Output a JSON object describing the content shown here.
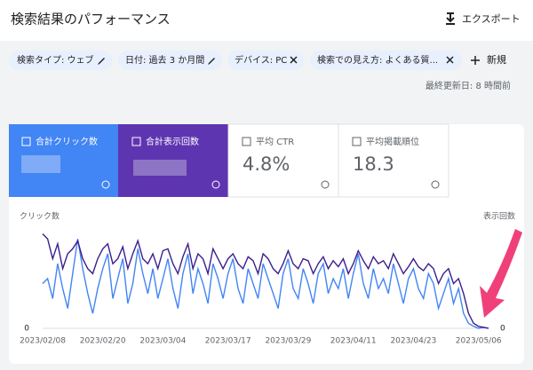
{
  "header": {
    "title": "検索結果のパフォーマンス",
    "export": "エクスポート"
  },
  "filters": {
    "chips": [
      "検索タイプ: ウェブ",
      "日付: 過去 3 か月間",
      "デバイス: PC",
      "検索での見え方: よくある質..."
    ],
    "new": "新規",
    "last_updated": "最終更新日: 8 時間前"
  },
  "cards": [
    {
      "label": "合計クリック数"
    },
    {
      "label": "合計表示回数"
    },
    {
      "label": "平均 CTR",
      "value": "4.8%"
    },
    {
      "label": "平均掲載順位",
      "value": "18.3"
    }
  ],
  "chart_data": {
    "type": "line",
    "y_label": "クリック数",
    "y2_label": "表示回数",
    "categories": [
      "2023/02/08",
      null,
      null,
      null,
      null,
      null,
      null,
      null,
      null,
      null,
      null,
      null,
      "2023/02/20",
      null,
      null,
      null,
      null,
      null,
      null,
      null,
      null,
      null,
      null,
      null,
      "2023/03/04",
      null,
      null,
      null,
      null,
      null,
      null,
      null,
      null,
      null,
      null,
      null,
      null,
      "2023/03/17",
      null,
      null,
      null,
      null,
      null,
      null,
      null,
      null,
      null,
      null,
      null,
      "2023/03/29",
      null,
      null,
      null,
      null,
      null,
      null,
      null,
      null,
      null,
      null,
      null,
      null,
      "2023/04/11",
      null,
      null,
      null,
      null,
      null,
      null,
      null,
      null,
      null,
      null,
      null,
      "2023/04/23",
      null,
      null,
      null,
      null,
      null,
      null,
      null,
      null,
      null,
      null,
      null,
      null,
      "2023/05/06",
      null,
      null
    ],
    "ylim": [
      0,
      100
    ],
    "yticks": [
      0
    ],
    "y2lim": [
      0,
      100
    ],
    "y2ticks": [
      0
    ],
    "series": [
      {
        "name": "合計クリック数",
        "color": "#4285f4",
        "values": [
          45,
          50,
          30,
          65,
          40,
          20,
          55,
          90,
          60,
          35,
          15,
          40,
          60,
          75,
          30,
          50,
          70,
          25,
          45,
          80,
          55,
          35,
          60,
          30,
          50,
          70,
          40,
          20,
          55,
          75,
          35,
          60,
          45,
          25,
          65,
          50,
          30,
          55,
          70,
          40,
          25,
          60,
          45,
          30,
          65,
          50,
          35,
          20,
          55,
          70,
          40,
          30,
          60,
          45,
          25,
          55,
          65,
          35,
          50,
          40,
          60,
          30,
          55,
          75,
          45,
          30,
          60,
          40,
          50,
          35,
          65,
          45,
          25,
          50,
          60,
          40,
          30,
          55,
          45,
          20,
          35,
          50,
          25,
          40,
          15,
          5,
          2,
          0,
          1,
          0
        ]
      },
      {
        "name": "合計表示回数",
        "color": "#3c1e8c",
        "axis": "y2",
        "values": [
          95,
          90,
          70,
          85,
          60,
          75,
          80,
          88,
          70,
          60,
          55,
          70,
          80,
          85,
          65,
          70,
          82,
          60,
          75,
          88,
          70,
          65,
          75,
          60,
          78,
          80,
          65,
          55,
          72,
          85,
          60,
          75,
          70,
          55,
          80,
          70,
          60,
          70,
          75,
          65,
          60,
          72,
          68,
          55,
          75,
          70,
          60,
          55,
          65,
          78,
          65,
          60,
          70,
          68,
          55,
          65,
          72,
          60,
          68,
          62,
          70,
          55,
          65,
          78,
          68,
          60,
          72,
          65,
          68,
          60,
          75,
          65,
          55,
          62,
          70,
          62,
          58,
          65,
          60,
          45,
          55,
          60,
          45,
          50,
          35,
          15,
          5,
          2,
          1,
          0
        ]
      }
    ]
  }
}
